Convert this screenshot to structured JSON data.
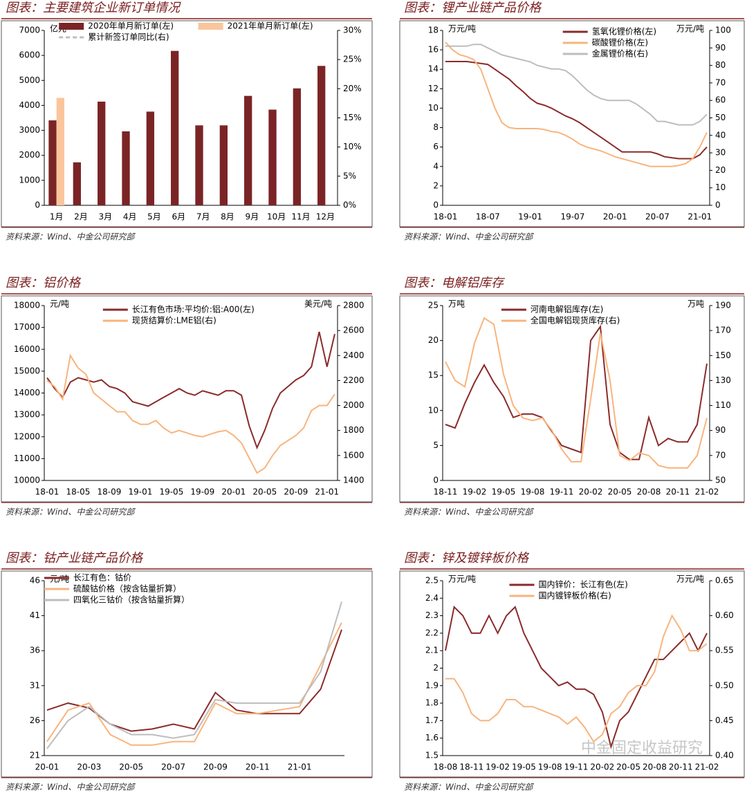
{
  "chart_data": [
    {
      "type": "bar",
      "title": "图表：主要建筑企业新订单情况",
      "source": "资料来源：Wind、中金公司研究部",
      "left_unit": "亿元",
      "categories": [
        "1月",
        "2月",
        "3月",
        "4月",
        "5月",
        "6月",
        "7月",
        "8月",
        "9月",
        "10月",
        "11月",
        "12月"
      ],
      "series": [
        {
          "name": "2020年单月新订单(左)",
          "color": "#7b2426",
          "kind": "bar",
          "values": [
            3400,
            1720,
            4150,
            2960,
            3750,
            6180,
            3200,
            3200,
            4380,
            3830,
            4680,
            5580
          ]
        },
        {
          "name": "2021年单月新订单(左)",
          "color": "#fbc59c",
          "kind": "bar",
          "values": [
            4300,
            null,
            null,
            null,
            null,
            null,
            null,
            null,
            null,
            null,
            null,
            null
          ]
        },
        {
          "name": "累计新签订单同比(右)",
          "color": "#bdbdbd",
          "kind": "line",
          "dashed": true,
          "axis": "y2",
          "values": [
            null,
            null,
            null,
            null,
            null,
            null,
            null,
            null,
            null,
            null,
            null,
            null
          ]
        }
      ],
      "ylim": [
        0,
        7000
      ],
      "yticks": [
        0,
        1000,
        2000,
        3000,
        4000,
        5000,
        6000,
        7000
      ],
      "y2lim": [
        0,
        30
      ],
      "y2ticks": [
        {
          "value": 0,
          "label": "0%"
        },
        {
          "value": 5,
          "label": "5%"
        },
        {
          "value": 10,
          "label": "10%"
        },
        {
          "value": 15,
          "label": "15%"
        },
        {
          "value": 20,
          "label": "20%"
        },
        {
          "value": 25,
          "label": "25%"
        },
        {
          "value": 30,
          "label": "30%"
        }
      ]
    },
    {
      "type": "line",
      "title": "图表：锂产业链产品价格",
      "source": "资料来源：Wind、中金公司研究部",
      "left_unit": "万元/吨",
      "right_unit": "万元/吨",
      "categories": [
        "18-01",
        null,
        null,
        null,
        null,
        null,
        "18-07",
        null,
        null,
        null,
        null,
        null,
        "19-01",
        null,
        null,
        null,
        null,
        null,
        "19-07",
        null,
        null,
        null,
        null,
        null,
        "20-01",
        null,
        null,
        null,
        null,
        null,
        "20-07",
        null,
        null,
        null,
        null,
        null,
        "21-01",
        null
      ],
      "series": [
        {
          "name": "氢氧化锂价格(左)",
          "color": "#8b2a2a",
          "values": [
            14.8,
            14.8,
            14.8,
            14.8,
            14.7,
            14.6,
            14.5,
            14.0,
            13.5,
            13.0,
            12.3,
            11.7,
            11.0,
            10.5,
            10.3,
            10.0,
            9.6,
            9.2,
            8.9,
            8.5,
            8.0,
            7.5,
            7.0,
            6.5,
            6.0,
            5.5,
            5.5,
            5.5,
            5.5,
            5.5,
            5.3,
            5.0,
            4.9,
            4.8,
            4.8,
            4.8,
            5.2,
            6.0
          ]
        },
        {
          "name": "碳酸锂价格(左)",
          "color": "#f8b47c",
          "values": [
            16.8,
            16.0,
            15.5,
            15.3,
            15.0,
            14.0,
            12.0,
            10.0,
            8.5,
            8.0,
            7.9,
            7.9,
            7.9,
            7.9,
            7.8,
            7.6,
            7.5,
            7.2,
            6.8,
            6.3,
            6.0,
            5.8,
            5.6,
            5.3,
            5.0,
            4.8,
            4.6,
            4.4,
            4.2,
            4.0,
            4.0,
            4.0,
            4.0,
            4.1,
            4.3,
            4.8,
            6.0,
            7.5
          ]
        },
        {
          "name": "金属锂价格(右)",
          "color": "#bdbdbd",
          "axis": "y2",
          "values": [
            91,
            91,
            91,
            91,
            92,
            92,
            90,
            88,
            86,
            85,
            84,
            83,
            82,
            80,
            79,
            78,
            78,
            77,
            74,
            70,
            66,
            63,
            61,
            60,
            60,
            60,
            60,
            58,
            55,
            52,
            48,
            48,
            47,
            46,
            46,
            46,
            48,
            52
          ]
        }
      ],
      "ylim": [
        0,
        18
      ],
      "yticks": [
        0,
        2,
        4,
        6,
        8,
        10,
        12,
        14,
        16,
        18
      ],
      "y2lim": [
        0,
        100
      ],
      "y2ticks": [
        0,
        10,
        20,
        30,
        40,
        50,
        60,
        70,
        80,
        90,
        100
      ]
    },
    {
      "type": "line",
      "title": "图表：铝价格",
      "source": "资料来源：Wind、中金公司研究部",
      "left_unit": "元/吨",
      "right_unit": "美元/吨",
      "categories": [
        "18-01",
        null,
        null,
        null,
        "18-05",
        null,
        null,
        null,
        "18-09",
        null,
        null,
        null,
        "19-01",
        null,
        null,
        null,
        "19-05",
        null,
        null,
        null,
        "19-09",
        null,
        null,
        null,
        "20-01",
        null,
        null,
        null,
        "20-05",
        null,
        null,
        null,
        "20-09",
        null,
        null,
        null,
        "21-01",
        null
      ],
      "series": [
        {
          "name": "长江有色市场:平均价:铝:A00(左)",
          "color": "#8b2a2a",
          "values": [
            14700,
            14200,
            13800,
            14500,
            14700,
            14600,
            14500,
            14600,
            14300,
            14200,
            14000,
            13600,
            13500,
            13400,
            13600,
            13800,
            14000,
            14200,
            14000,
            13900,
            14100,
            14000,
            13900,
            14100,
            14100,
            13900,
            12500,
            11500,
            12300,
            13300,
            14000,
            14300,
            14600,
            14800,
            15200,
            16800,
            15200,
            16700
          ]
        },
        {
          "name": "现货结算价:LME铝(右)",
          "color": "#f8b47c",
          "axis": "y2",
          "values": [
            2200,
            2150,
            2050,
            2400,
            2300,
            2250,
            2100,
            2050,
            2000,
            1950,
            1950,
            1880,
            1850,
            1850,
            1880,
            1820,
            1780,
            1800,
            1780,
            1760,
            1750,
            1770,
            1790,
            1800,
            1760,
            1700,
            1580,
            1460,
            1500,
            1600,
            1680,
            1720,
            1760,
            1820,
            1960,
            2000,
            2000,
            2090
          ]
        }
      ],
      "ylim": [
        10000,
        18000
      ],
      "yticks": [
        10000,
        11000,
        12000,
        13000,
        14000,
        15000,
        16000,
        17000,
        18000
      ],
      "y2lim": [
        1400,
        2800
      ],
      "y2ticks": [
        1400,
        1600,
        1800,
        2000,
        2200,
        2400,
        2600,
        2800
      ]
    },
    {
      "type": "line",
      "title": "图表：电解铝库存",
      "source": "资料来源：Wind、中金公司研究部",
      "left_unit": "万吨",
      "right_unit": "万吨",
      "categories": [
        "18-11",
        null,
        null,
        "19-02",
        null,
        null,
        "19-05",
        null,
        null,
        "19-08",
        null,
        null,
        "19-11",
        null,
        null,
        "20-02",
        null,
        null,
        "20-05",
        null,
        null,
        "20-08",
        null,
        null,
        "20-11",
        null,
        null,
        "21-02"
      ],
      "series": [
        {
          "name": "河南电解铝库存(左)",
          "color": "#8b2a2a",
          "values": [
            8,
            7.5,
            11,
            14,
            16.5,
            14,
            12,
            9,
            9.5,
            9.5,
            9,
            7,
            5,
            4.5,
            4,
            20,
            22,
            8,
            4,
            3,
            3,
            9,
            5,
            6,
            5.5,
            5.5,
            8,
            16.7
          ]
        },
        {
          "name": "全国电解铝现货库存(右)",
          "color": "#f8b47c",
          "axis": "y2",
          "values": [
            145,
            130,
            125,
            160,
            180,
            175,
            135,
            110,
            100,
            98,
            100,
            90,
            75,
            65,
            65,
            115,
            168,
            130,
            70,
            66,
            72,
            70,
            62,
            60,
            60,
            60,
            70,
            100
          ]
        }
      ],
      "ylim": [
        0,
        25
      ],
      "yticks": [
        0,
        5,
        10,
        15,
        20,
        25
      ],
      "y2lim": [
        50,
        190
      ],
      "y2ticks": [
        50,
        70,
        90,
        110,
        130,
        150,
        170,
        190
      ]
    },
    {
      "type": "line",
      "title": "图表：钴产业链产品价格",
      "source": "资料来源：Wind、中金公司研究部",
      "left_unit": "元/吨",
      "categories": [
        "20-01",
        null,
        "20-03",
        null,
        "20-05",
        null,
        "20-07",
        null,
        "20-09",
        null,
        "20-11",
        null,
        "21-01",
        null,
        null
      ],
      "series": [
        {
          "name": "长江有色：钴价",
          "color": "#8b2a2a",
          "values": [
            27.5,
            28.5,
            27.8,
            25.5,
            24.5,
            24.8,
            25.5,
            24.8,
            30,
            27.5,
            27.0,
            27.0,
            27.0,
            30.5,
            39
          ]
        },
        {
          "name": "硫酸钴价格（按含钴量折算）",
          "color": "#f8b47c",
          "values": [
            23,
            27.5,
            28.5,
            24,
            22.5,
            22.5,
            23,
            23,
            28.5,
            27,
            27,
            27.5,
            28,
            34,
            40
          ]
        },
        {
          "name": "四氧化三钴价（按含钴量折算）",
          "color": "#bdbdbd",
          "values": [
            22,
            26,
            28,
            25.5,
            24,
            24,
            23.5,
            24,
            29,
            28.5,
            28.5,
            28.5,
            28.5,
            33,
            43
          ]
        }
      ],
      "ylim": [
        21,
        46
      ],
      "yticks": [
        21,
        26,
        31,
        36,
        41,
        46
      ]
    },
    {
      "type": "line",
      "title": "图表：锌及镀锌板价格",
      "source": "资料来源：Wind、中金公司研究部",
      "left_unit": "万元/吨",
      "right_unit": "万元/吨",
      "watermark": "中金固定收益研究",
      "categories": [
        "18-08",
        null,
        null,
        "18-11",
        null,
        null,
        "19-02",
        null,
        null,
        "19-05",
        null,
        null,
        "19-08",
        null,
        null,
        "19-11",
        null,
        null,
        "20-02",
        null,
        null,
        "20-05",
        null,
        null,
        "20-08",
        null,
        null,
        "20-11",
        null,
        null,
        "21-02"
      ],
      "series": [
        {
          "name": "国内锌价：长江有色(左)",
          "color": "#8b2a2a",
          "values": [
            2.1,
            2.35,
            2.3,
            2.2,
            2.2,
            2.3,
            2.2,
            2.3,
            2.35,
            2.2,
            2.1,
            2.0,
            1.95,
            1.9,
            1.92,
            1.88,
            1.88,
            1.85,
            1.75,
            1.55,
            1.7,
            1.75,
            1.85,
            1.95,
            2.05,
            2.05,
            2.1,
            2.15,
            2.2,
            2.1,
            2.2
          ]
        },
        {
          "name": "国内镀锌板价格(右)",
          "color": "#f8b47c",
          "axis": "y2",
          "values": [
            0.51,
            0.51,
            0.49,
            0.46,
            0.45,
            0.45,
            0.46,
            0.48,
            0.48,
            0.47,
            0.47,
            0.465,
            0.46,
            0.455,
            0.445,
            0.455,
            0.44,
            0.42,
            0.43,
            0.46,
            0.47,
            0.49,
            0.5,
            0.5,
            0.52,
            0.57,
            0.6,
            0.58,
            0.55,
            0.55,
            0.56
          ]
        }
      ],
      "ylim": [
        1.5,
        2.5
      ],
      "yticks": [
        1.5,
        1.6,
        1.7,
        1.8,
        1.9,
        2.0,
        2.1,
        2.2,
        2.3,
        2.4,
        2.5
      ],
      "y2lim": [
        0.4,
        0.65
      ],
      "y2ticks": [
        {
          "value": 0.4,
          "label": "0.40"
        },
        {
          "value": 0.45,
          "label": "0.45"
        },
        {
          "value": 0.5,
          "label": "0.50"
        },
        {
          "value": 0.55,
          "label": "0.55"
        },
        {
          "value": 0.6,
          "label": "0.60"
        },
        {
          "value": 0.65,
          "label": "0.65"
        }
      ]
    }
  ]
}
